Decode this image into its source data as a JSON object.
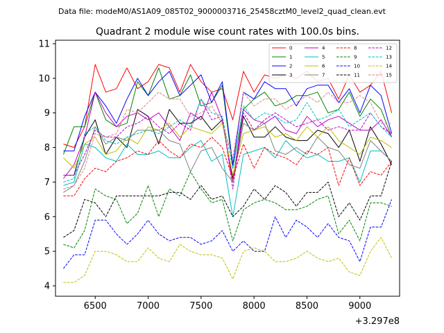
{
  "chart_data": {
    "type": "line",
    "suptitle": "Data file: modeM0/AS1A09_085T02_9000003716_25458cztM0_level2_quad_clean.evt",
    "title": "Quadrant 2 module wise count rates with 100.0s bins.",
    "xlabel": "",
    "ylabel": "",
    "x_offset_label": "+3.297e8",
    "xlim": [
      6125,
      9375
    ],
    "ylim": [
      3.7,
      11.1
    ],
    "xticks": [
      6500,
      7000,
      7500,
      8000,
      8500,
      9000
    ],
    "yticks": [
      4,
      5,
      6,
      7,
      8,
      9,
      10,
      11
    ],
    "legend_position": "top-right",
    "legend_columns": 4,
    "grid": false,
    "x": [
      6200,
      6300,
      6400,
      6500,
      6600,
      6700,
      6800,
      6900,
      7000,
      7100,
      7200,
      7300,
      7400,
      7500,
      7600,
      7700,
      7800,
      7900,
      8000,
      8100,
      8200,
      8300,
      8400,
      8500,
      8600,
      8700,
      8800,
      8900,
      9000,
      9100,
      9200,
      9300
    ],
    "series": [
      {
        "name": "0",
        "color": "#ff0000",
        "dash": "solid",
        "values": [
          8.1,
          8.0,
          8.6,
          10.4,
          9.6,
          9.7,
          10.3,
          9.7,
          9.9,
          10.4,
          10.3,
          9.6,
          10.4,
          9.9,
          9.6,
          9.7,
          8.8,
          10.2,
          9.6,
          10.1,
          10.0,
          10.1,
          10.0,
          10.2,
          9.9,
          10.0,
          9.4,
          10.1,
          9.6,
          9.8,
          10.2,
          9.0
        ]
      },
      {
        "name": "1",
        "color": "#008000",
        "dash": "solid",
        "values": [
          7.8,
          8.6,
          8.6,
          9.6,
          8.8,
          8.6,
          8.7,
          9.9,
          9.5,
          10.3,
          9.4,
          9.5,
          10.1,
          9.2,
          9.3,
          9.8,
          7.4,
          9.1,
          9.4,
          9.6,
          9.2,
          9.3,
          9.5,
          9.5,
          9.6,
          9.0,
          9.1,
          9.6,
          8.9,
          9.4,
          9.1,
          8.3
        ]
      },
      {
        "name": "2",
        "color": "#0000ff",
        "dash": "solid",
        "values": [
          7.9,
          7.9,
          8.9,
          9.6,
          9.2,
          8.7,
          9.4,
          10.0,
          9.5,
          9.9,
          10.2,
          9.5,
          9.8,
          10.1,
          9.3,
          9.9,
          7.5,
          9.6,
          9.4,
          9.9,
          9.7,
          9.7,
          9.2,
          9.7,
          9.8,
          9.8,
          9.3,
          9.7,
          9.0,
          9.8,
          9.5,
          8.4
        ]
      },
      {
        "name": "3",
        "color": "#000000",
        "dash": "solid",
        "values": [
          7.2,
          7.2,
          8.3,
          8.8,
          7.8,
          8.3,
          8.0,
          9.1,
          8.9,
          8.1,
          9.1,
          8.7,
          8.7,
          8.9,
          8.5,
          8.8,
          7.1,
          8.9,
          8.3,
          8.3,
          8.6,
          8.3,
          8.2,
          8.2,
          8.5,
          8.4,
          8.0,
          8.5,
          7.6,
          8.6,
          8.1,
          7.5
        ]
      },
      {
        "name": "4",
        "color": "#bf00bf",
        "dash": "solid",
        "values": [
          7.1,
          7.5,
          8.3,
          9.6,
          9.0,
          8.6,
          8.9,
          9.0,
          8.8,
          9.0,
          8.6,
          8.2,
          9.0,
          8.8,
          9.6,
          8.8,
          7.0,
          9.1,
          8.8,
          8.7,
          8.9,
          8.5,
          8.4,
          8.9,
          8.6,
          8.8,
          8.9,
          8.7,
          8.5,
          8.5,
          8.8,
          8.3
        ]
      },
      {
        "name": "5",
        "color": "#00bfbf",
        "dash": "solid",
        "values": [
          6.9,
          7.0,
          8.1,
          8.0,
          7.7,
          7.6,
          8.1,
          7.8,
          7.8,
          7.9,
          7.7,
          7.7,
          8.0,
          8.2,
          7.6,
          7.8,
          6.0,
          7.8,
          7.9,
          8.0,
          7.7,
          8.2,
          7.9,
          7.7,
          7.8,
          7.6,
          7.6,
          7.7,
          7.0,
          7.9,
          7.9,
          7.6
        ]
      },
      {
        "name": "6",
        "color": "#bfbf00",
        "dash": "solid",
        "values": [
          7.7,
          7.4,
          8.1,
          8.3,
          7.8,
          7.9,
          8.3,
          8.1,
          8.6,
          8.5,
          8.7,
          8.3,
          8.6,
          8.5,
          8.4,
          8.7,
          7.2,
          8.4,
          8.5,
          8.6,
          8.3,
          8.4,
          8.2,
          8.6,
          8.3,
          8.6,
          8.2,
          8.0,
          7.8,
          8.3,
          8.2,
          8.0
        ]
      },
      {
        "name": "7",
        "color": "#808080",
        "dash": "solid",
        "values": [
          6.7,
          6.9,
          7.6,
          8.6,
          8.1,
          8.3,
          8.2,
          8.5,
          8.5,
          8.5,
          8.2,
          8.1,
          7.3,
          7.9,
          8.0,
          7.4,
          7.0,
          8.7,
          8.5,
          8.7,
          7.9,
          7.8,
          8.0,
          7.8,
          8.3,
          8.0,
          7.9,
          7.5,
          7.4,
          8.2,
          7.9,
          7.6
        ]
      },
      {
        "name": "8",
        "color": "#ff0000",
        "dash": "dashed",
        "values": [
          6.6,
          6.6,
          7.1,
          7.4,
          7.3,
          7.6,
          7.7,
          7.9,
          7.8,
          8.2,
          7.9,
          7.7,
          8.1,
          8.0,
          8.3,
          8.0,
          7.1,
          8.1,
          7.4,
          8.0,
          7.8,
          7.7,
          7.5,
          7.9,
          7.8,
          8.0,
          6.9,
          7.7,
          6.9,
          7.3,
          7.2,
          7.6
        ]
      },
      {
        "name": "9",
        "color": "#008000",
        "dash": "dashed",
        "values": [
          5.2,
          5.1,
          5.6,
          6.8,
          6.6,
          6.5,
          5.8,
          6.1,
          6.9,
          6.0,
          6.8,
          6.6,
          7.3,
          6.8,
          6.4,
          6.5,
          5.3,
          6.2,
          6.4,
          6.5,
          6.4,
          6.2,
          6.2,
          6.3,
          6.5,
          6.6,
          5.5,
          5.9,
          5.3,
          6.4,
          6.4,
          6.3
        ]
      },
      {
        "name": "10",
        "color": "#0000ff",
        "dash": "dashed",
        "values": [
          4.5,
          4.9,
          4.9,
          5.9,
          5.9,
          5.5,
          5.2,
          5.5,
          5.9,
          5.5,
          5.3,
          5.4,
          5.4,
          5.2,
          5.3,
          5.6,
          5.0,
          5.3,
          5.0,
          5.0,
          6.0,
          5.4,
          5.9,
          5.7,
          5.4,
          5.8,
          5.4,
          5.3,
          4.7,
          5.7,
          5.7,
          6.5
        ]
      },
      {
        "name": "11",
        "color": "#000000",
        "dash": "dashed",
        "values": [
          5.4,
          5.6,
          6.5,
          6.4,
          6.0,
          6.6,
          6.6,
          6.6,
          6.6,
          6.6,
          6.7,
          6.7,
          6.5,
          6.9,
          6.5,
          6.6,
          6.0,
          6.3,
          6.8,
          6.5,
          6.9,
          6.7,
          6.3,
          6.7,
          6.7,
          7.0,
          6.0,
          6.4,
          5.9,
          6.6,
          6.6,
          7.6
        ]
      },
      {
        "name": "12",
        "color": "#bf00bf",
        "dash": "dashed",
        "values": [
          7.2,
          7.2,
          7.8,
          8.5,
          8.3,
          8.3,
          8.6,
          8.7,
          8.9,
          8.6,
          8.4,
          8.7,
          8.5,
          9.4,
          8.8,
          8.9,
          6.8,
          9.0,
          8.5,
          8.8,
          9.0,
          8.8,
          8.6,
          8.7,
          8.8,
          8.5,
          8.6,
          8.5,
          8.5,
          9.0,
          8.6,
          8.4
        ]
      },
      {
        "name": "13",
        "color": "#00bfbf",
        "dash": "dashed",
        "values": [
          7.0,
          7.1,
          8.4,
          8.6,
          8.2,
          8.1,
          8.3,
          8.4,
          8.5,
          8.4,
          8.6,
          8.8,
          8.6,
          9.4,
          9.0,
          8.9,
          7.4,
          9.2,
          8.8,
          9.0,
          8.9,
          8.7,
          8.8,
          9.3,
          8.8,
          8.9,
          9.1,
          8.6,
          8.8,
          9.0,
          8.6,
          8.3
        ]
      },
      {
        "name": "14",
        "color": "#bfbf00",
        "dash": "dashed",
        "values": [
          4.1,
          4.1,
          4.3,
          5.0,
          5.0,
          4.9,
          4.7,
          4.7,
          5.1,
          4.8,
          4.7,
          5.2,
          5.0,
          4.9,
          4.9,
          4.8,
          4.2,
          5.0,
          5.1,
          5.0,
          4.7,
          4.7,
          4.8,
          5.0,
          4.8,
          4.7,
          4.8,
          4.4,
          4.3,
          5.0,
          5.4,
          4.8
        ]
      },
      {
        "name": "15",
        "color": "#e08080",
        "dash": "dashed",
        "values": [
          6.8,
          6.9,
          7.4,
          8.4,
          8.3,
          8.4,
          9.1,
          9.0,
          9.3,
          9.6,
          9.4,
          9.4,
          8.9,
          9.0,
          9.2,
          8.7,
          7.7,
          9.6,
          9.2,
          9.4,
          9.4,
          9.1,
          9.3,
          9.5,
          9.3,
          9.6,
          9.3,
          9.3,
          9.5,
          9.3,
          8.7,
          8.7
        ]
      }
    ]
  }
}
